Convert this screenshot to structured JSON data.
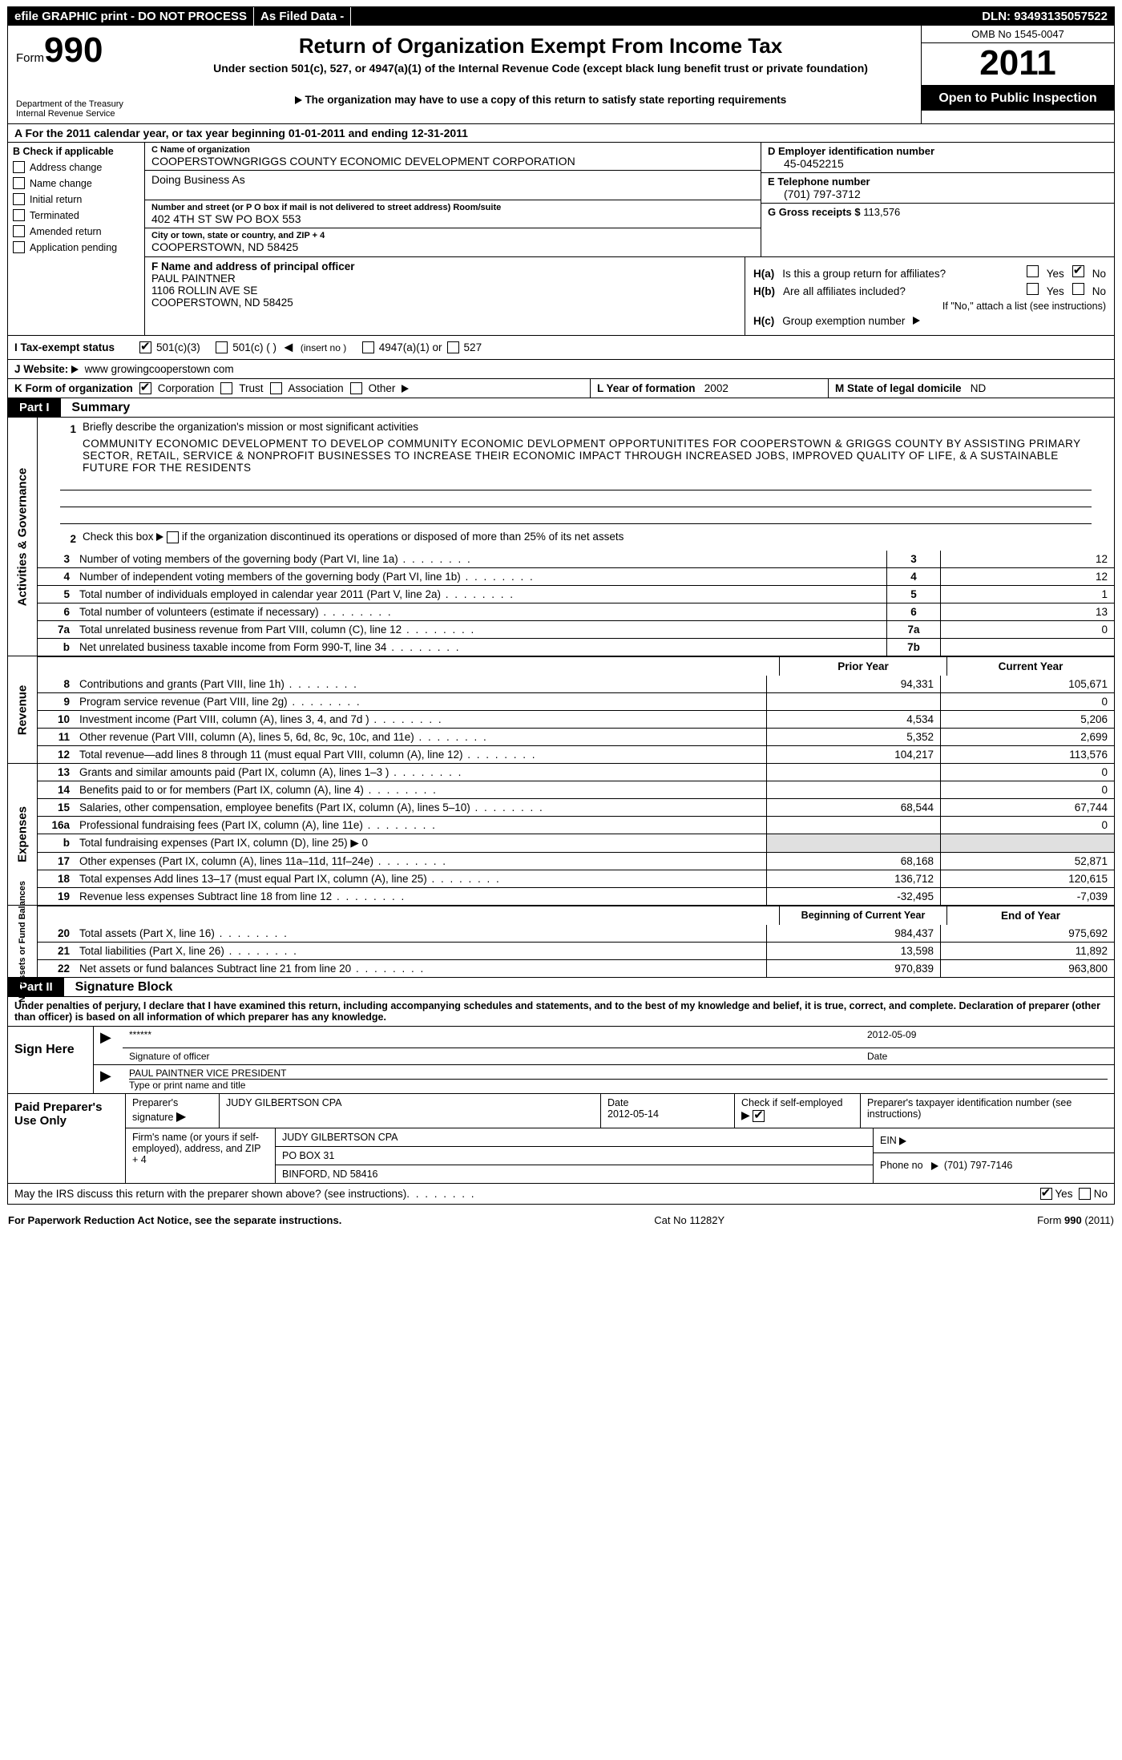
{
  "top": {
    "efile": "efile GRAPHIC print - DO NOT PROCESS",
    "asfiled": "As Filed Data - ",
    "dln": "DLN: 93493135057522"
  },
  "header": {
    "form_word": "Form",
    "form_number": "990",
    "title": "Return of Organization Exempt From Income Tax",
    "subtitle": "Under section 501(c), 527, or 4947(a)(1) of the Internal Revenue Code (except black lung benefit trust or private foundation)",
    "notice": "The organization may have to use a copy of this return to satisfy state reporting requirements",
    "dept1": "Department of the Treasury",
    "dept2": "Internal Revenue Service",
    "omb": "OMB No 1545-0047",
    "year": "2011",
    "inspection": "Open to Public Inspection"
  },
  "row_a": "A  For the 2011 calendar year, or tax year beginning 01-01-2011    and ending 12-31-2011",
  "col_b": {
    "title": "B  Check if applicable",
    "items": [
      "Address change",
      "Name change",
      "Initial return",
      "Terminated",
      "Amended return",
      "Application pending"
    ]
  },
  "block_c": {
    "label": "C Name of organization",
    "name": "COOPERSTOWNGRIGGS COUNTY ECONOMIC DEVELOPMENT CORPORATION",
    "dba_label": "Doing Business As",
    "street_label": "Number and street (or P O  box if mail is not delivered to street address) Room/suite",
    "street": "402 4TH ST SW PO BOX 553",
    "city_label": "City or town, state or country, and ZIP + 4",
    "city": "COOPERSTOWN, ND  58425"
  },
  "block_d": {
    "label": "D Employer identification number",
    "ein": "45-0452215"
  },
  "block_e": {
    "label": "E Telephone number",
    "phone": "(701) 797-3712"
  },
  "block_g": {
    "label": "G Gross receipts $",
    "value": "113,576"
  },
  "block_f": {
    "label": "F  Name and address of principal officer",
    "name": "PAUL PAINTNER",
    "addr1": "1106 ROLLIN AVE SE",
    "addr2": "COOPERSTOWN, ND  58425"
  },
  "block_h": {
    "ha_label": "H(a)",
    "ha_text": "Is this a group return for affiliates?",
    "hb_label": "H(b)",
    "hb_text": "Are all affiliates included?",
    "hb_note": "If \"No,\" attach a list  (see instructions)",
    "hc_label": "H(c)",
    "hc_text": "Group exemption number"
  },
  "status": {
    "label": "I  Tax-exempt status",
    "opt1": "501(c)(3)",
    "opt2": "501(c) (   )",
    "insert": "(insert no )",
    "opt3": "4947(a)(1) or",
    "opt4": "527"
  },
  "website": {
    "label": "J  Website:",
    "value": "www growingcooperstown com"
  },
  "k_row": {
    "label": "K Form of organization",
    "opts": [
      "Corporation",
      "Trust",
      "Association",
      "Other"
    ],
    "l_label": "L Year of formation",
    "l_val": "2002",
    "m_label": "M State of legal domicile",
    "m_val": "ND"
  },
  "part1": {
    "header": "Part I",
    "title": "Summary"
  },
  "activities": {
    "label": "Activities & Governance",
    "line1_num": "1",
    "line1_text": "Briefly describe the organization's mission or most significant activities",
    "mission": "COMMUNITY ECONOMIC DEVELOPMENT TO DEVELOP COMMUNITY ECONOMIC DEVLOPMENT OPPORTUNITITES FOR COOPERSTOWN & GRIGGS COUNTY BY ASSISTING PRIMARY SECTOR, RETAIL, SERVICE & NONPROFIT BUSINESSES TO INCREASE THEIR ECONOMIC IMPACT THROUGH INCREASED JOBS, IMPROVED QUALITY OF LIFE, & A SUSTAINABLE FUTURE FOR THE RESIDENTS",
    "line2_num": "2",
    "line2_text": "Check this box ▶     if the organization discontinued its operations or disposed of more than 25% of its net assets",
    "rows": [
      {
        "n": "3",
        "t": "Number of voting members of the governing body (Part VI, line 1a)",
        "b": "3",
        "v": "12"
      },
      {
        "n": "4",
        "t": "Number of independent voting members of the governing body (Part VI, line 1b)",
        "b": "4",
        "v": "12"
      },
      {
        "n": "5",
        "t": "Total number of individuals employed in calendar year 2011 (Part V, line 2a)",
        "b": "5",
        "v": "1"
      },
      {
        "n": "6",
        "t": "Total number of volunteers (estimate if necessary)",
        "b": "6",
        "v": "13"
      },
      {
        "n": "7a",
        "t": "Total unrelated business revenue from Part VIII, column (C), line 12",
        "b": "7a",
        "v": "0"
      },
      {
        "n": "b",
        "t": "Net unrelated business taxable income from Form 990-T, line 34",
        "b": "7b",
        "v": ""
      }
    ]
  },
  "col_hdr": {
    "prior": "Prior Year",
    "current": "Current Year"
  },
  "revenue": {
    "label": "Revenue",
    "rows": [
      {
        "n": "8",
        "t": "Contributions and grants (Part VIII, line 1h)",
        "p": "94,331",
        "c": "105,671"
      },
      {
        "n": "9",
        "t": "Program service revenue (Part VIII, line 2g)",
        "p": "",
        "c": "0"
      },
      {
        "n": "10",
        "t": "Investment income (Part VIII, column (A), lines 3, 4, and 7d )",
        "p": "4,534",
        "c": "5,206"
      },
      {
        "n": "11",
        "t": "Other revenue (Part VIII, column (A), lines 5, 6d, 8c, 9c, 10c, and 11e)",
        "p": "5,352",
        "c": "2,699"
      },
      {
        "n": "12",
        "t": "Total revenue—add lines 8 through 11 (must equal Part VIII, column (A), line 12)",
        "p": "104,217",
        "c": "113,576"
      }
    ]
  },
  "expenses": {
    "label": "Expenses",
    "rows": [
      {
        "n": "13",
        "t": "Grants and similar amounts paid (Part IX, column (A), lines 1–3 )",
        "p": "",
        "c": "0"
      },
      {
        "n": "14",
        "t": "Benefits paid to or for members (Part IX, column (A), line 4)",
        "p": "",
        "c": "0"
      },
      {
        "n": "15",
        "t": "Salaries, other compensation, employee benefits (Part IX, column (A), lines 5–10)",
        "p": "68,544",
        "c": "67,744"
      },
      {
        "n": "16a",
        "t": "Professional fundraising fees (Part IX, column (A), line 11e)",
        "p": "",
        "c": "0"
      },
      {
        "n": "b",
        "t": "Total fundraising expenses (Part IX, column (D), line 25)  ▶ 0",
        "p": "shaded",
        "c": "shaded"
      },
      {
        "n": "17",
        "t": "Other expenses (Part IX, column (A), lines 11a–11d, 11f–24e)",
        "p": "68,168",
        "c": "52,871"
      },
      {
        "n": "18",
        "t": "Total expenses  Add lines 13–17 (must equal Part IX, column (A), line 25)",
        "p": "136,712",
        "c": "120,615"
      },
      {
        "n": "19",
        "t": "Revenue less expenses  Subtract line 18 from line 12",
        "p": "-32,495",
        "c": "-7,039"
      }
    ]
  },
  "col_hdr2": {
    "begin": "Beginning of Current Year",
    "end": "End of Year"
  },
  "netassets": {
    "label": "Net Assets or Fund Balances",
    "rows": [
      {
        "n": "20",
        "t": "Total assets (Part X, line 16)",
        "p": "984,437",
        "c": "975,692"
      },
      {
        "n": "21",
        "t": "Total liabilities (Part X, line 26)",
        "p": "13,598",
        "c": "11,892"
      },
      {
        "n": "22",
        "t": "Net assets or fund balances  Subtract line 21 from line 20",
        "p": "970,839",
        "c": "963,800"
      }
    ]
  },
  "part2": {
    "header": "Part II",
    "title": "Signature Block"
  },
  "perjury": "Under penalties of perjury, I declare that I have examined this return, including accompanying schedules and statements, and to the best of my knowledge and belief, it is true, correct, and complete. Declaration of preparer (other than officer) is based on all information of which preparer has any knowledge.",
  "sign": {
    "label": "Sign Here",
    "stars": "******",
    "sig_label": "Signature of officer",
    "date": "2012-05-09",
    "date_label": "Date",
    "name": "PAUL PAINTNER VICE PRESIDENT",
    "name_label": "Type or print name and title"
  },
  "preparer": {
    "label": "Paid Preparer's Use Only",
    "sig_label": "Preparer's signature",
    "name": "JUDY GILBERTSON CPA",
    "date_label": "Date",
    "date": "2012-05-14",
    "check_label": "Check if self-employed",
    "ptin_label": "Preparer's taxpayer identification number (see instructions)",
    "firm_label": "Firm's name (or yours if self-employed), address, and ZIP + 4",
    "firm_name": "JUDY GILBERTSON CPA",
    "firm_addr1": "PO BOX 31",
    "firm_addr2": "BINFORD, ND  58416",
    "ein_label": "EIN",
    "phone_label": "Phone no",
    "phone": "(701) 797-7146"
  },
  "irs_discuss": "May the IRS discuss this return with the preparer shown above? (see instructions)",
  "footer": {
    "left": "For Paperwork Reduction Act Notice, see the separate instructions.",
    "mid": "Cat No 11282Y",
    "right": "Form 990 (2011)"
  },
  "yesno": {
    "yes": "Yes",
    "no": "No"
  }
}
